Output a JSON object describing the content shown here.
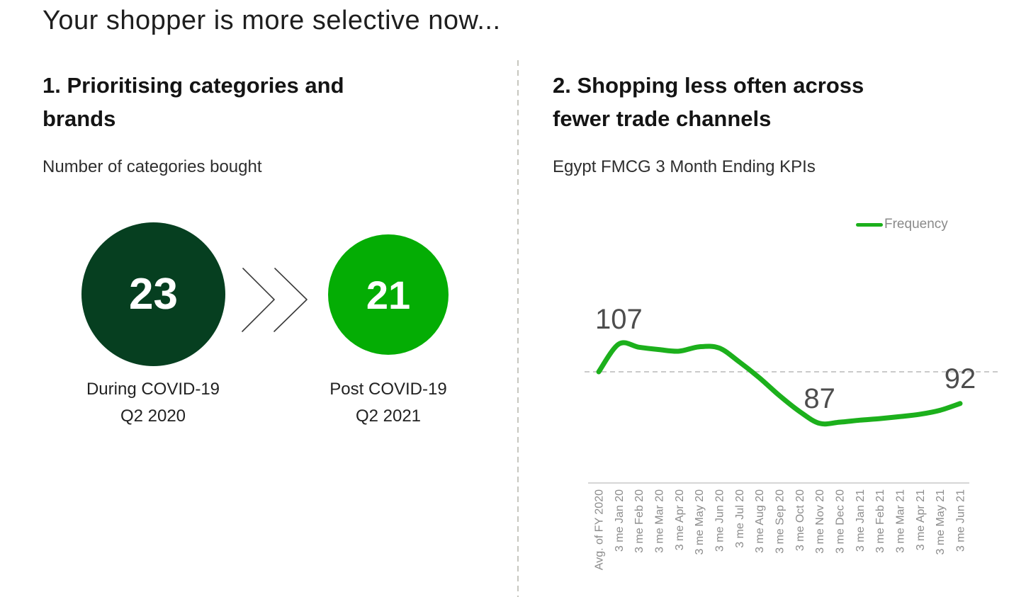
{
  "title": "Your shopper is more selective now...",
  "colors": {
    "dark_green": "#063F20",
    "bright_green": "#04AD04",
    "line_green": "#1CB01C",
    "data_label_gray": "#4D4D4D",
    "tick_label_gray": "#8C8C8C",
    "axis_gray": "#C9C9C9",
    "baseline_gray": "#B9B9B9",
    "divider_gray": "#C7C7BF"
  },
  "section1": {
    "heading": "1. Prioritising categories and brands",
    "subtitle": "Number of categories bought",
    "comparison": {
      "before": {
        "value": "23",
        "caption_line1": "During COVID-19",
        "caption_line2": "Q2 2020"
      },
      "after": {
        "value": "21",
        "caption_line1": "Post COVID-19",
        "caption_line2": "Q2 2021"
      }
    }
  },
  "section2": {
    "heading": "2. Shopping less often across fewer trade channels",
    "subtitle": "Egypt FMCG 3 Month Ending KPIs",
    "legend": [
      {
        "label": "Frequency",
        "color": "#1CB01C"
      }
    ]
  },
  "chart_data": {
    "type": "line",
    "title": "Egypt FMCG 3 Month Ending KPIs",
    "xlabel": "",
    "ylabel": "",
    "legend_position": "top-right",
    "grid": "single dashed baseline at 100",
    "baseline": 100,
    "ylim": [
      80,
      112
    ],
    "categories": [
      "Avg. of FY 2020",
      "3 me Jan 20",
      "3 me Feb 20",
      "3 me Mar 20",
      "3 me Apr 20",
      "3 me May 20",
      "3 me Jun 20",
      "3 me Jul 20",
      "3 me Aug 20",
      "3 me Sep 20",
      "3 me Oct 20",
      "3 me Nov 20",
      "3 me Dec 20",
      "3 me Jan 21",
      "3 me Feb 21",
      "3 me Mar 21",
      "3 me Apr 21",
      "3 me May 21",
      "3 me Jun 21"
    ],
    "series": [
      {
        "name": "Frequency",
        "color": "#1CB01C",
        "values": [
          100,
          107,
          106.2,
          105.6,
          105.2,
          106.3,
          106,
          102.5,
          98.5,
          94,
          90,
          87,
          87.3,
          87.8,
          88.2,
          88.7,
          89.3,
          90.3,
          92
        ]
      }
    ],
    "point_labels": [
      {
        "index": 1,
        "text": "107"
      },
      {
        "index": 11,
        "text": "87"
      },
      {
        "index": 18,
        "text": "92"
      }
    ]
  }
}
